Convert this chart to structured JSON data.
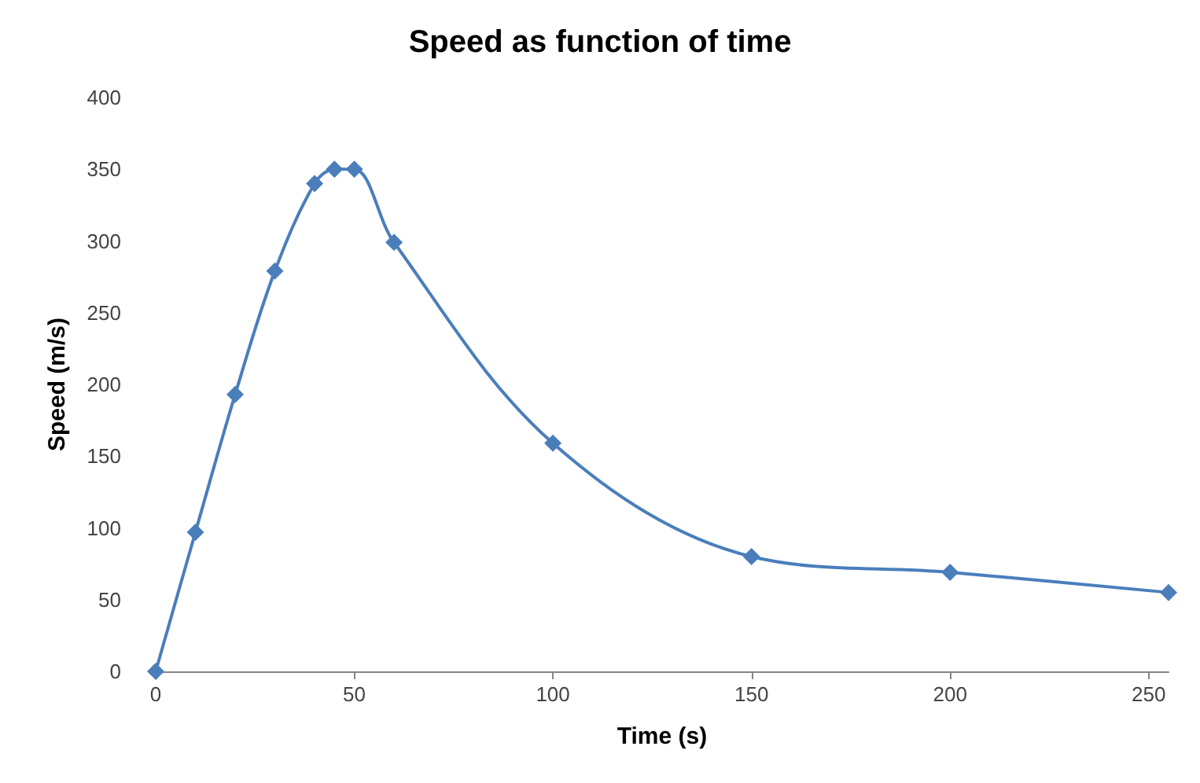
{
  "chart_data": {
    "type": "line",
    "title": "Speed as function of time",
    "xlabel": "Time (s)",
    "ylabel": "Speed (m/s)",
    "x": [
      0,
      10,
      20,
      30,
      40,
      45,
      50,
      60,
      100,
      150,
      200,
      255
    ],
    "series": [
      {
        "color": "#4a7ebb",
        "values": [
          0,
          97,
          193,
          279,
          340,
          350,
          350,
          299,
          159,
          80,
          69,
          55
        ]
      }
    ],
    "xlim": [
      0,
      255
    ],
    "xticks": [
      0,
      50,
      100,
      150,
      200,
      250
    ],
    "ylim": [
      0,
      400
    ],
    "yticks": [
      0,
      50,
      100,
      150,
      200,
      250,
      300,
      350,
      400
    ],
    "grid": false,
    "marker": "diamond",
    "line_style": "solid"
  }
}
